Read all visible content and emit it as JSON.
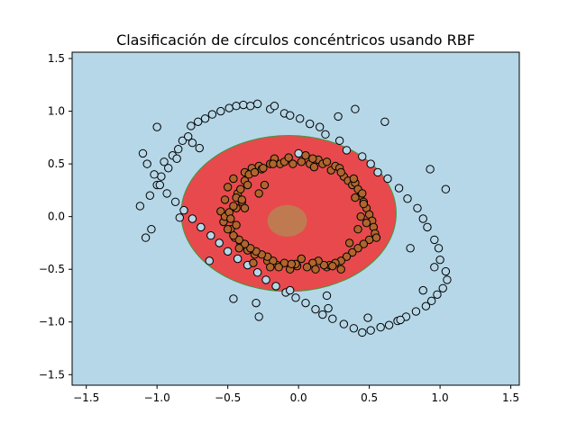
{
  "chart_data": {
    "type": "scatter",
    "title": "Clasificación de círculos concéntricos usando RBF",
    "xlabel": "",
    "ylabel": "",
    "xlim": [
      -1.6,
      1.56
    ],
    "ylim": [
      -1.6,
      1.56
    ],
    "x_ticks": [
      -1.5,
      -1.0,
      -0.5,
      0.0,
      0.5,
      1.0,
      1.5
    ],
    "x_tick_labels": [
      "−1.5",
      "−1.0",
      "−0.5",
      "0.0",
      "0.5",
      "1.0",
      "1.5"
    ],
    "y_ticks": [
      -1.5,
      -1.0,
      -0.5,
      0.0,
      0.5,
      1.0,
      1.5
    ],
    "y_tick_labels": [
      "−1.5",
      "−1.0",
      "−0.5",
      "0.0",
      "0.5",
      "1.0",
      "1.5"
    ],
    "grid": false,
    "legend": "none",
    "colors": {
      "outer_region": "#b6d7e8",
      "inner_region": "#e8494d",
      "region_border": "#3c9a3c",
      "center_region": "#c07a52",
      "outer_points": "#b6d7e8",
      "inner_points": "#b0652c",
      "edge": "#000000"
    },
    "decision_regions": [
      {
        "class": 1,
        "shape": "ellipse",
        "center": [
          -0.07,
          0.03
        ],
        "rx": 0.76,
        "ry": 0.74,
        "color": "inner_region"
      },
      {
        "class": 0,
        "shape": "ellipse",
        "center": [
          -0.08,
          -0.04
        ],
        "rx": 0.14,
        "ry": 0.15,
        "color": "center_region"
      }
    ],
    "series": [
      {
        "class": 0,
        "color": "outer_points",
        "x": [
          -1.12,
          -1.05,
          -1.08,
          -1.0,
          -0.97,
          -0.95,
          -0.92,
          -0.89,
          -0.85,
          -0.82,
          -0.78,
          -0.76,
          -0.71,
          -0.66,
          -0.61,
          -0.55,
          -0.49,
          -0.44,
          -0.39,
          -0.34,
          -0.29,
          -0.2,
          -0.17,
          -0.1,
          -0.06,
          0.01,
          0.08,
          0.15,
          0.19,
          0.29,
          0.34,
          0.45,
          0.51,
          0.56,
          0.63,
          0.71,
          0.77,
          0.84,
          0.88,
          0.91,
          0.96,
          0.99,
          1.0,
          1.04,
          1.05,
          1.02,
          0.98,
          0.94,
          0.9,
          0.83,
          0.76,
          0.7,
          0.64,
          0.58,
          0.51,
          0.45,
          0.39,
          0.32,
          0.24,
          0.17,
          0.12,
          0.05,
          -0.02,
          -0.09,
          -0.16,
          -0.23,
          -0.29,
          -0.36,
          -0.43,
          -0.5,
          -0.56,
          -0.62,
          -0.69,
          -0.75,
          -0.81,
          -0.87,
          -0.93,
          -0.98,
          -1.02,
          -1.07,
          -1.1,
          -1.0,
          -0.75,
          -0.86,
          -0.7,
          -0.28,
          0.0,
          0.2,
          0.28,
          0.4,
          0.61,
          0.79,
          0.93,
          1.04,
          0.96,
          0.88,
          0.72,
          0.49,
          0.21,
          -0.06,
          -0.3,
          -0.46,
          -0.63,
          -0.84,
          -1.04
        ],
        "y": [
          0.1,
          0.2,
          -0.2,
          0.3,
          0.38,
          0.52,
          0.46,
          0.58,
          0.64,
          0.72,
          0.76,
          0.86,
          0.9,
          0.93,
          0.97,
          1.0,
          1.03,
          1.05,
          1.06,
          1.05,
          1.07,
          1.02,
          1.05,
          0.98,
          0.96,
          0.93,
          0.88,
          0.85,
          0.78,
          0.72,
          0.63,
          0.57,
          0.5,
          0.42,
          0.36,
          0.27,
          0.17,
          0.08,
          -0.02,
          -0.1,
          -0.22,
          -0.3,
          -0.41,
          -0.52,
          -0.6,
          -0.68,
          -0.74,
          -0.8,
          -0.85,
          -0.9,
          -0.95,
          -0.99,
          -1.03,
          -1.05,
          -1.08,
          -1.1,
          -1.06,
          -1.02,
          -0.97,
          -0.93,
          -0.88,
          -0.82,
          -0.77,
          -0.72,
          -0.66,
          -0.6,
          -0.53,
          -0.46,
          -0.4,
          -0.33,
          -0.25,
          -0.18,
          -0.1,
          -0.02,
          0.06,
          0.14,
          0.22,
          0.3,
          0.4,
          0.5,
          0.6,
          0.85,
          0.7,
          0.55,
          0.65,
          -0.95,
          0.6,
          -0.75,
          0.95,
          1.02,
          0.9,
          -0.3,
          0.45,
          0.26,
          -0.48,
          -0.7,
          -0.98,
          -0.96,
          -0.87,
          -0.7,
          -0.82,
          -0.78,
          -0.42,
          -0.01,
          -0.12
        ],
        "note_hidden": ""
      },
      {
        "class": 1,
        "color": "inner_points",
        "x": [
          -0.55,
          -0.52,
          -0.5,
          -0.48,
          -0.46,
          -0.45,
          -0.44,
          -0.43,
          -0.41,
          -0.4,
          -0.38,
          -0.36,
          -0.33,
          -0.31,
          -0.28,
          -0.26,
          -0.24,
          -0.22,
          -0.2,
          -0.17,
          -0.15,
          -0.13,
          -0.1,
          -0.07,
          -0.04,
          -0.01,
          0.02,
          0.05,
          0.08,
          0.11,
          0.14,
          0.17,
          0.2,
          0.23,
          0.26,
          0.29,
          0.32,
          0.35,
          0.38,
          0.4,
          0.42,
          0.44,
          0.46,
          0.48,
          0.5,
          0.52,
          0.53,
          0.54,
          0.55,
          0.5,
          0.46,
          0.42,
          0.38,
          0.34,
          0.3,
          0.26,
          0.22,
          0.18,
          0.14,
          0.1,
          0.06,
          0.02,
          -0.02,
          -0.06,
          -0.1,
          -0.14,
          -0.18,
          -0.22,
          -0.26,
          -0.3,
          -0.34,
          -0.38,
          -0.42,
          -0.46,
          -0.5,
          -0.53,
          -0.52,
          -0.49,
          -0.46,
          -0.44,
          -0.41,
          -0.38,
          -0.35,
          -0.31,
          -0.25,
          -0.18,
          0.1,
          0.2,
          0.3,
          0.39,
          0.45,
          0.4,
          0.36,
          0.3,
          0.24,
          0.12,
          -0.05,
          -0.2,
          -0.32,
          -0.42,
          -0.48,
          -0.36,
          -0.28,
          0.44,
          0.48,
          0.46,
          0.42,
          -0.44,
          -0.4,
          -0.38
        ],
        "y": [
          0.05,
          0.16,
          0.28,
          -0.12,
          0.36,
          -0.2,
          0.08,
          0.22,
          -0.25,
          0.14,
          0.42,
          -0.32,
          0.46,
          -0.36,
          0.48,
          0.45,
          0.3,
          -0.42,
          0.5,
          0.55,
          -0.46,
          0.5,
          0.52,
          0.56,
          0.5,
          -0.47,
          0.52,
          0.58,
          0.5,
          0.47,
          0.54,
          0.5,
          -0.48,
          0.44,
          0.48,
          0.46,
          0.38,
          0.34,
          0.3,
          0.32,
          0.26,
          0.2,
          0.14,
          0.08,
          0.02,
          -0.04,
          -0.1,
          -0.16,
          -0.2,
          -0.22,
          -0.26,
          -0.3,
          -0.34,
          -0.38,
          -0.42,
          -0.44,
          -0.46,
          -0.46,
          -0.42,
          -0.44,
          -0.48,
          -0.4,
          -0.45,
          -0.5,
          -0.44,
          -0.48,
          -0.42,
          -0.38,
          -0.36,
          -0.33,
          -0.3,
          -0.26,
          -0.22,
          -0.18,
          -0.12,
          -0.05,
          0.0,
          0.04,
          0.1,
          0.18,
          0.26,
          0.34,
          0.4,
          0.42,
          0.46,
          0.5,
          0.55,
          0.52,
          0.42,
          0.36,
          0.22,
          0.18,
          -0.25,
          -0.5,
          -0.47,
          -0.5,
          -0.45,
          -0.48,
          -0.44,
          -0.3,
          -0.02,
          0.3,
          0.22,
          0.0,
          -0.06,
          0.12,
          -0.12,
          -0.08,
          0.16,
          0.08
        ]
      }
    ]
  }
}
